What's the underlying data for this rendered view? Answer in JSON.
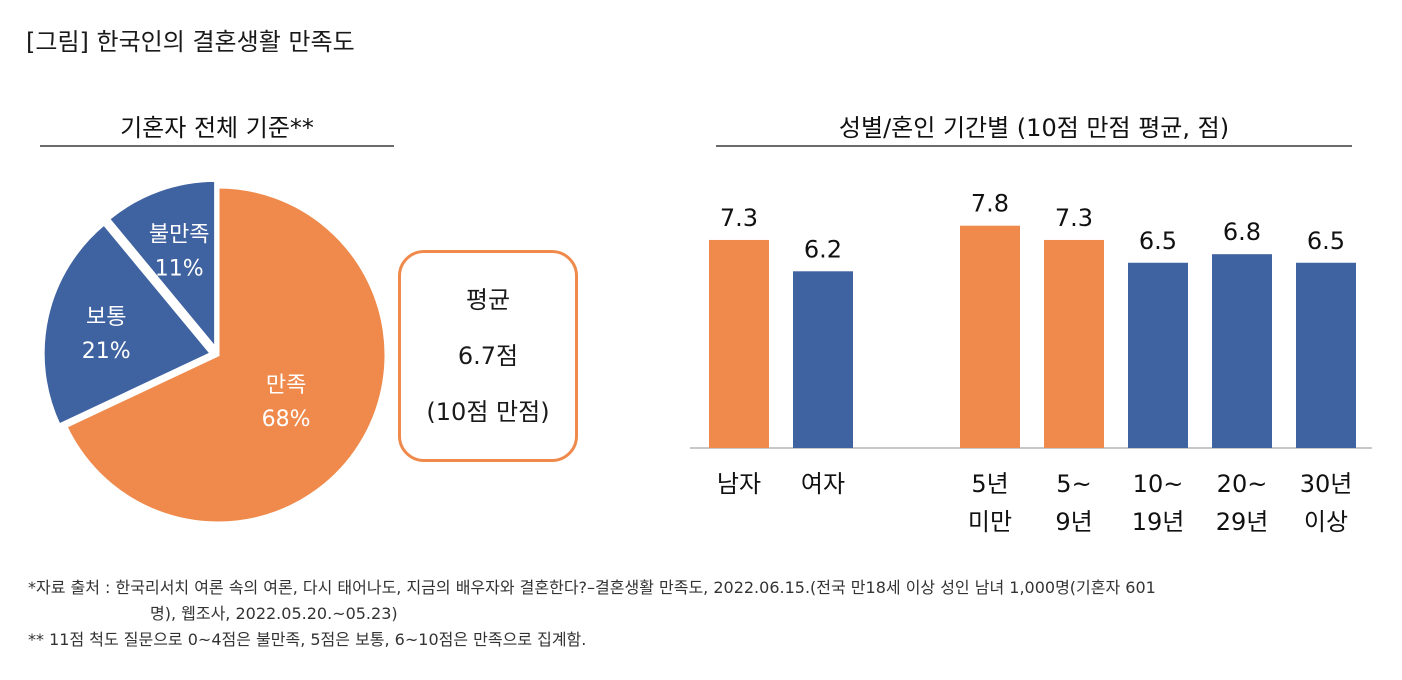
{
  "figure_title": "[그림] 한국인의 결혼생활 만족도",
  "left_panel_title": "기혼자 전체 기준**",
  "right_panel_title": "성별/혼인 기간별 (10점 만점 평균, 점)",
  "average_box": {
    "line1": "평균",
    "line2": "6.7점",
    "line3": "(10점 만점)"
  },
  "colors": {
    "orange": "#ef8a4c",
    "blue": "#3f62a0",
    "rule": "#6b6b6b"
  },
  "chart_data": [
    {
      "type": "pie",
      "title": "기혼자 전체 기준**",
      "slices": [
        {
          "label": "만족",
          "value": 68,
          "value_label": "68%",
          "color": "#ef8a4c"
        },
        {
          "label": "보통",
          "value": 21,
          "value_label": "21%",
          "color": "#3f62a0",
          "exploded": true
        },
        {
          "label": "불만족",
          "value": 11,
          "value_label": "11%",
          "color": "#3f62a0",
          "exploded": true
        }
      ]
    },
    {
      "type": "bar",
      "title": "성별/혼인 기간별 (10점 만점 평균, 점)",
      "categories": [
        {
          "lines": [
            "남자"
          ],
          "value": 7.3,
          "label": "7.3",
          "color": "#ef8a4c",
          "group": 0
        },
        {
          "lines": [
            "여자"
          ],
          "value": 6.2,
          "label": "6.2",
          "color": "#3f62a0",
          "group": 0
        },
        {
          "lines": [
            "5년",
            "미만"
          ],
          "value": 7.8,
          "label": "7.8",
          "color": "#ef8a4c",
          "group": 1
        },
        {
          "lines": [
            "5~",
            "9년"
          ],
          "value": 7.3,
          "label": "7.3",
          "color": "#ef8a4c",
          "group": 1
        },
        {
          "lines": [
            "10~",
            "19년"
          ],
          "value": 6.5,
          "label": "6.5",
          "color": "#3f62a0",
          "group": 1
        },
        {
          "lines": [
            "20~",
            "29년"
          ],
          "value": 6.8,
          "label": "6.8",
          "color": "#3f62a0",
          "group": 1
        },
        {
          "lines": [
            "30년",
            "이상"
          ],
          "value": 6.5,
          "label": "6.5",
          "color": "#3f62a0",
          "group": 1
        }
      ],
      "ylim": [
        0,
        10
      ],
      "grid": false,
      "legend": "none"
    }
  ],
  "footnotes": {
    "line1": "*자료 출처 : 한국리서치 여론 속의 여론, 다시 태어나도, 지금의 배우자와 결혼한다?–결혼생활 만족도, 2022.06.15.(전국 만18세 이상 성인 남녀 1,000명(기혼자 601",
    "line2": "명), 웹조사, 2022.05.20.~05.23)",
    "line3": "** 11점 척도 질문으로 0~4점은 불만족, 5점은 보통, 6~10점은 만족으로 집계함."
  }
}
